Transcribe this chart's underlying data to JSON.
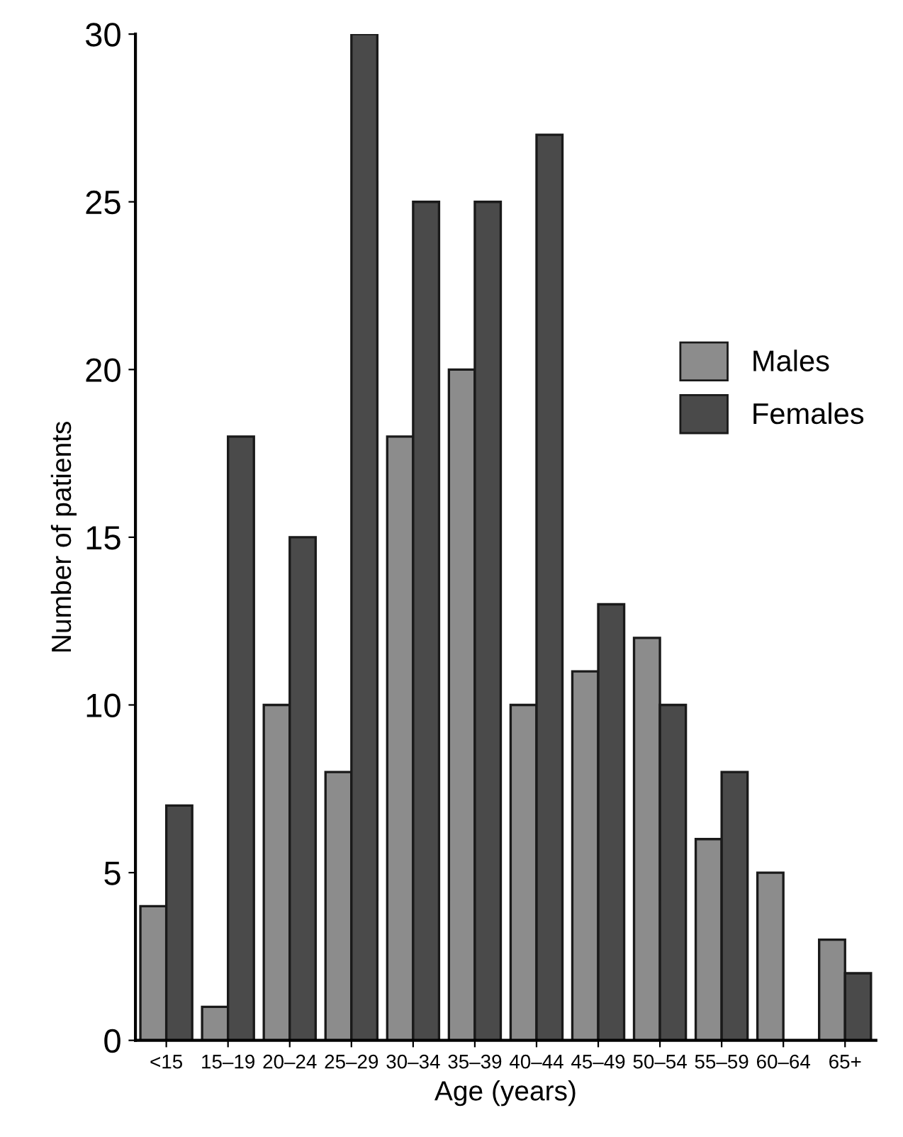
{
  "chart_data": {
    "type": "bar",
    "xlabel": "Age (years)",
    "ylabel": "Number of patients",
    "categories": [
      "<15",
      "15–19",
      "20–24",
      "25–29",
      "30–34",
      "35–39",
      "40–44",
      "45–49",
      "50–54",
      "55–59",
      "60–64",
      "65+"
    ],
    "series": [
      {
        "name": "Males",
        "color": "#8c8c8c",
        "values": [
          4,
          1,
          10,
          8,
          18,
          20,
          10,
          11,
          12,
          6,
          5,
          3
        ]
      },
      {
        "name": "Females",
        "color": "#4a4a4a",
        "values": [
          7,
          18,
          15,
          30,
          25,
          25,
          27,
          13,
          10,
          8,
          0,
          2
        ]
      }
    ],
    "ylim": [
      0,
      30
    ],
    "yticks": [
      0,
      5,
      10,
      15,
      20,
      25,
      30
    ],
    "grid": false,
    "legend": "top right"
  }
}
